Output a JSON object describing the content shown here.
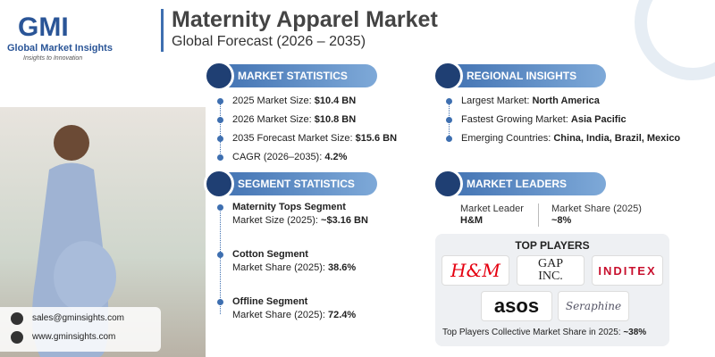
{
  "header": {
    "logo_name": "GMI",
    "logo_text": "Global Market Insights",
    "logo_tagline": "Insights to Innovation",
    "title": "Maternity Apparel Market",
    "subtitle": "Global Forecast (2026 – 2035)"
  },
  "market_statistics": {
    "title": "MARKET STATISTICS",
    "items": [
      {
        "label": "2025 Market Size:",
        "value": "$10.4 BN"
      },
      {
        "label": "2026 Market Size:",
        "value": "$10.8 BN"
      },
      {
        "label": "2035 Forecast Market Size:",
        "value": "$15.6 BN"
      },
      {
        "label": "CAGR (2026–2035):",
        "value": "4.2%"
      }
    ]
  },
  "regional_insights": {
    "title": "REGIONAL INSIGHTS",
    "items": [
      {
        "label": "Largest Market:",
        "value": "North America"
      },
      {
        "label": "Fastest Growing Market:",
        "value": "Asia Pacific"
      },
      {
        "label": "Emerging Countries:",
        "value": "China, India, Brazil, Mexico"
      }
    ]
  },
  "segment_statistics": {
    "title": "SEGMENT STATISTICS",
    "items": [
      {
        "name": "Maternity Tops Segment",
        "label": "Market Size (2025):",
        "value": "~$3.16 BN"
      },
      {
        "name": "Cotton Segment",
        "label": "Market Share (2025):",
        "value": "38.6%"
      },
      {
        "name": "Offline Segment",
        "label": "Market Share (2025):",
        "value": "72.4%"
      }
    ]
  },
  "market_leaders": {
    "title": "MARKET LEADERS",
    "leader_label": "Market Leader",
    "leader": "H&M",
    "share_label": "Market Share (2025)",
    "share": "~8%"
  },
  "top_players": {
    "title": "TOP PLAYERS",
    "players": [
      "H&M",
      "GAP INC.",
      "INDITEX",
      "asos",
      "Seraphine"
    ],
    "note": "Top Players Collective Market Share in 2025:",
    "note_value": "~38%"
  },
  "contact": {
    "email": "sales@gminsights.com",
    "website": "www.gminsights.com"
  }
}
